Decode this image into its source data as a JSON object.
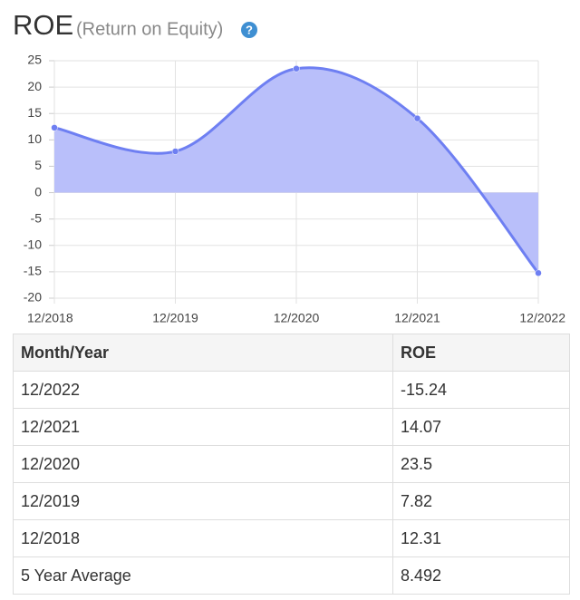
{
  "chart_data": {
    "type": "area",
    "title": "ROE",
    "subtitle": "(Return on Equity)",
    "help_icon": "?",
    "categories": [
      "12/2018",
      "12/2019",
      "12/2020",
      "12/2021",
      "12/2022"
    ],
    "values": [
      12.31,
      7.82,
      23.5,
      14.07,
      -15.24
    ],
    "color": "#6e7ff2",
    "fill_color": "#b9bffa",
    "ylim": [
      -20,
      25
    ],
    "yticks": [
      -20,
      -15,
      -10,
      -5,
      0,
      5,
      10,
      15,
      20,
      25
    ],
    "grid": true
  },
  "table": {
    "columns": [
      "Month/Year",
      "ROE"
    ],
    "rows": [
      [
        "12/2022",
        -15.24
      ],
      [
        "12/2021",
        14.07
      ],
      [
        "12/2020",
        23.5
      ],
      [
        "12/2019",
        7.82
      ],
      [
        "12/2018",
        12.31
      ],
      [
        "5 Year Average",
        8.492
      ]
    ]
  }
}
